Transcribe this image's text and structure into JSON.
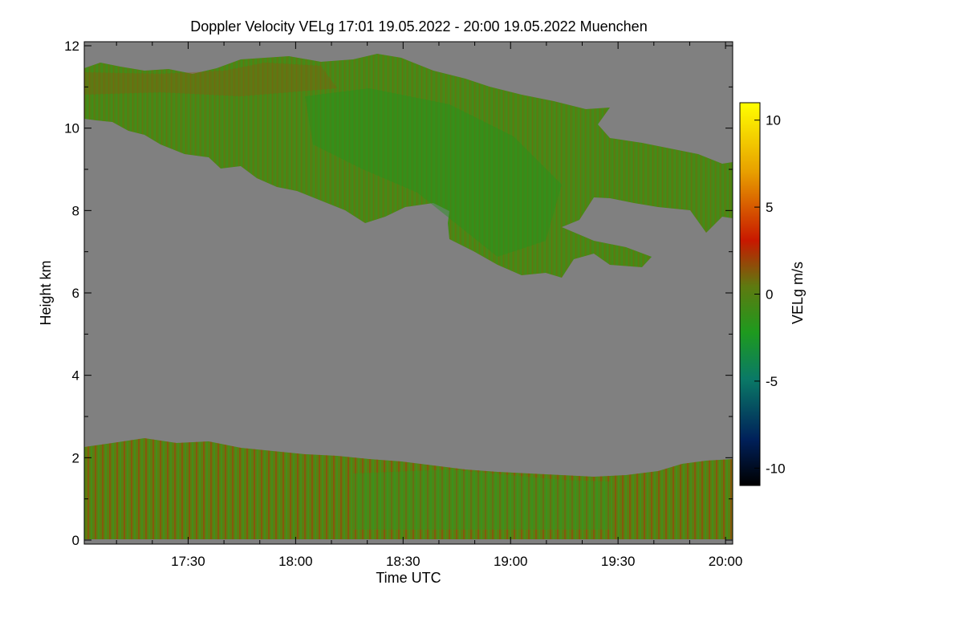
{
  "chart_data": {
    "type": "heatmap",
    "title": "Doppler Velocity VELg   17:01 19.05.2022 - 20:00 19.05.2022 Muenchen",
    "xlabel": "Time UTC",
    "ylabel": "Height km",
    "x_range": [
      "17:01",
      "20:02"
    ],
    "y_range": [
      0,
      12
    ],
    "x_ticks": [
      "17:30",
      "18:00",
      "18:30",
      "19:00",
      "19:30",
      "20:00"
    ],
    "y_ticks": [
      "0",
      "2",
      "4",
      "6",
      "8",
      "10",
      "12"
    ],
    "colorbar": {
      "label": "VELg m/s",
      "range": [
        -11,
        11
      ],
      "ticks": [
        "10",
        "5",
        "0",
        "-5",
        "-10"
      ],
      "colors": [
        "#000000",
        "#00205a",
        "#0a7a66",
        "#1e9a1e",
        "#5e7a10",
        "#c81800",
        "#e8a000",
        "#ffff00"
      ]
    },
    "background_color": "#808080",
    "regions": [
      {
        "name": "upper cloud layer",
        "time_start": "17:01",
        "time_end": "20:02",
        "base_km": [
          10.2,
          6.4,
          7.5
        ],
        "top_km": [
          11.7,
          11.2,
          9.0
        ],
        "velocity_ms": [
          -3,
          1
        ]
      },
      {
        "name": "boundary layer",
        "time_start": "17:01",
        "time_end": "20:02",
        "base_km": 0,
        "top_km": [
          2.5,
          1.7,
          2.0
        ],
        "velocity_ms": [
          -3,
          3
        ]
      }
    ]
  }
}
